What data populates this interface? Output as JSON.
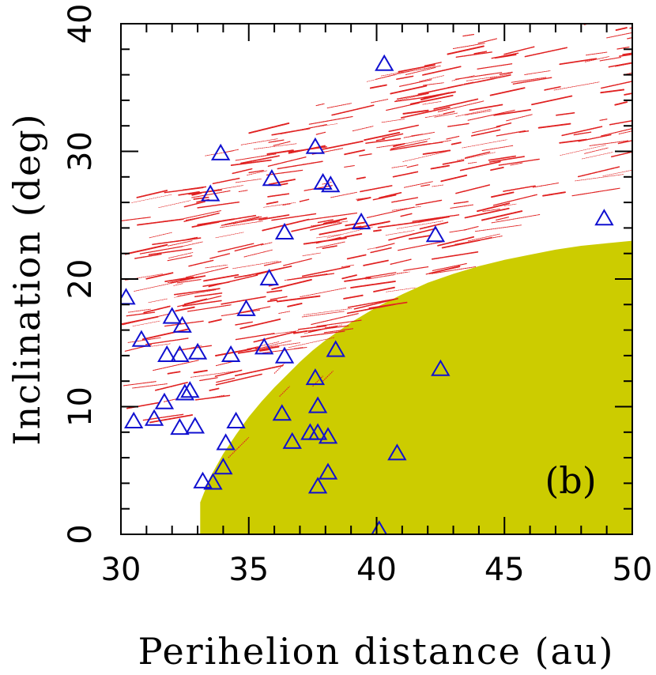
{
  "chart_data": {
    "type": "scatter",
    "xlabel": "Perihelion distance (au)",
    "ylabel": "Inclination (deg)",
    "panel_label": "(b)",
    "xlim": [
      30,
      50
    ],
    "ylim": [
      0,
      40
    ],
    "x_ticks": [
      30,
      35,
      40,
      45,
      50
    ],
    "y_ticks": [
      0,
      10,
      20,
      30,
      40
    ],
    "grid": false,
    "colors": {
      "triangles": "#1010d0",
      "simulated": "#e02020",
      "shaded_region": "#cccc00",
      "axes": "#000000"
    },
    "shaded_region": {
      "description_color": "olive",
      "boundary": [
        [
          33.1,
          0
        ],
        [
          33.1,
          2.5
        ],
        [
          33.5,
          4.5
        ],
        [
          34.0,
          6.3
        ],
        [
          34.5,
          7.8
        ],
        [
          35.0,
          9.2
        ],
        [
          35.5,
          10.4
        ],
        [
          36.0,
          11.5
        ],
        [
          36.5,
          12.5
        ],
        [
          37.0,
          13.5
        ],
        [
          37.5,
          14.4
        ],
        [
          38.0,
          15.2
        ],
        [
          39.0,
          16.6
        ],
        [
          40.0,
          17.8
        ],
        [
          41.0,
          18.8
        ],
        [
          42.0,
          19.7
        ],
        [
          43.0,
          20.4
        ],
        [
          44.0,
          21.0
        ],
        [
          45.0,
          21.5
        ],
        [
          46.0,
          21.9
        ],
        [
          47.0,
          22.3
        ],
        [
          48.0,
          22.6
        ],
        [
          49.0,
          22.8
        ],
        [
          50.0,
          23.0
        ],
        [
          50.0,
          0
        ]
      ]
    },
    "series": [
      {
        "marker": "triangle-open",
        "points": [
          [
            30.2,
            18.5
          ],
          [
            30.5,
            8.8
          ],
          [
            30.8,
            15.2
          ],
          [
            31.3,
            9.0
          ],
          [
            31.7,
            10.3
          ],
          [
            31.8,
            14.0
          ],
          [
            32.0,
            17.0
          ],
          [
            32.3,
            8.3
          ],
          [
            32.3,
            14.0
          ],
          [
            32.4,
            16.3
          ],
          [
            32.5,
            11.0
          ],
          [
            32.7,
            11.2
          ],
          [
            32.9,
            8.4
          ],
          [
            33.0,
            14.2
          ],
          [
            33.2,
            4.1
          ],
          [
            33.5,
            26.6
          ],
          [
            33.6,
            4.0
          ],
          [
            33.9,
            29.8
          ],
          [
            34.0,
            5.2
          ],
          [
            34.1,
            7.1
          ],
          [
            34.3,
            14.0
          ],
          [
            34.5,
            8.8
          ],
          [
            34.9,
            17.6
          ],
          [
            35.6,
            14.6
          ],
          [
            35.8,
            20.0
          ],
          [
            35.9,
            27.8
          ],
          [
            36.3,
            9.4
          ],
          [
            36.4,
            23.6
          ],
          [
            36.4,
            13.9
          ],
          [
            36.7,
            7.2
          ],
          [
            37.4,
            7.9
          ],
          [
            37.6,
            12.2
          ],
          [
            37.6,
            30.3
          ],
          [
            37.7,
            10.0
          ],
          [
            37.7,
            7.9
          ],
          [
            37.7,
            3.7
          ],
          [
            37.9,
            27.5
          ],
          [
            38.1,
            7.6
          ],
          [
            38.1,
            4.8
          ],
          [
            38.2,
            27.3
          ],
          [
            38.4,
            14.4
          ],
          [
            39.4,
            24.4
          ],
          [
            40.1,
            0.3
          ],
          [
            40.3,
            36.8
          ],
          [
            40.8,
            6.3
          ],
          [
            42.3,
            23.4
          ],
          [
            42.5,
            12.9
          ],
          [
            48.9,
            24.7
          ]
        ]
      },
      {
        "marker": "red-dots",
        "style": "dense streaks of simulated objects"
      }
    ]
  }
}
